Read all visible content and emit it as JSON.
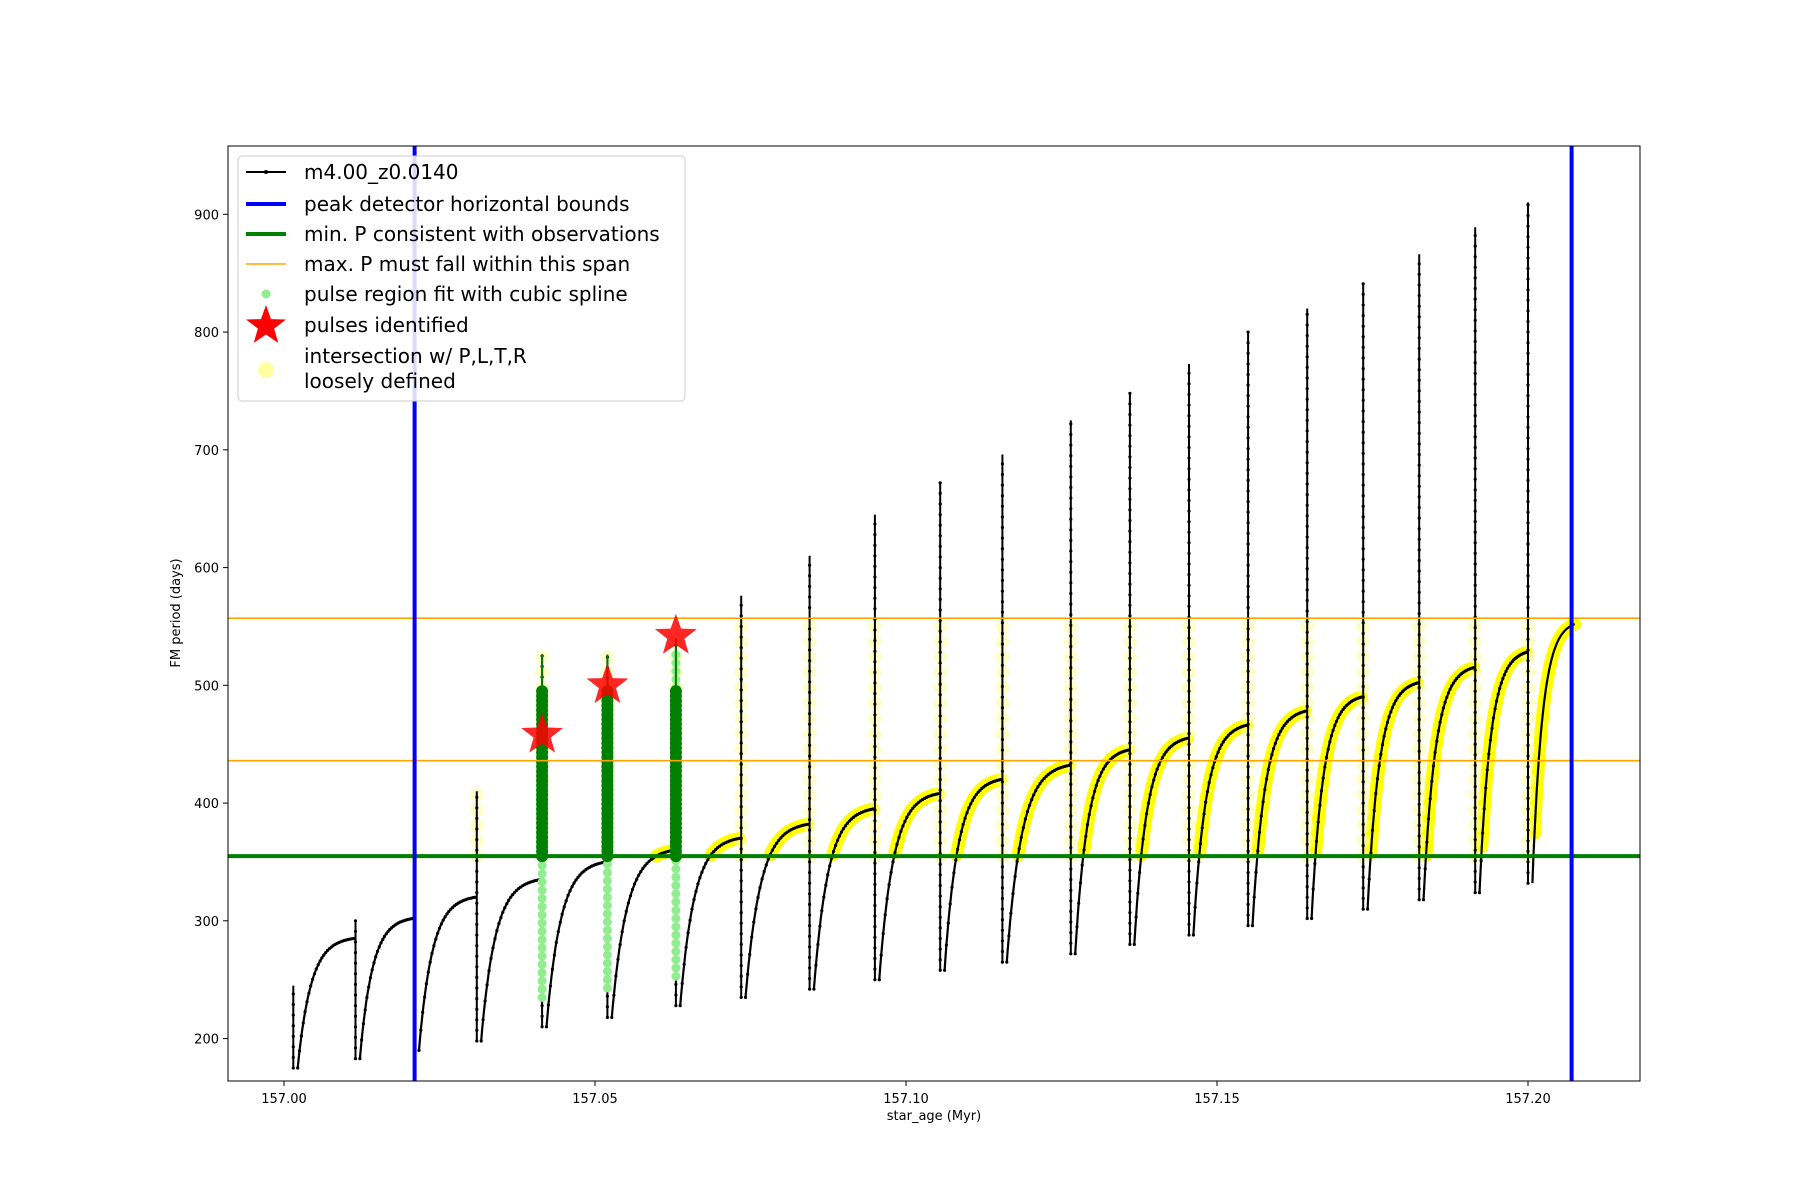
{
  "chart_data": {
    "type": "scatter",
    "title": "",
    "xlabel": "star_age (Myr)",
    "ylabel": "FM period (days)",
    "xlim": [
      156.991,
      157.218
    ],
    "ylim": [
      164,
      958
    ],
    "x_ticks": [
      157.0,
      157.05,
      157.1,
      157.15,
      157.2
    ],
    "x_tick_labels": [
      "157.00",
      "157.05",
      "157.10",
      "157.15",
      "157.20"
    ],
    "y_ticks": [
      200,
      300,
      400,
      500,
      600,
      700,
      800,
      900
    ],
    "y_tick_labels": [
      "200",
      "300",
      "400",
      "500",
      "600",
      "700",
      "800",
      "900"
    ],
    "grid": false,
    "legend_position": "upper-left",
    "legend": [
      {
        "label": "m4.00_z0.0140",
        "style": "line-marker",
        "color": "#000000"
      },
      {
        "label": "peak detector horizontal bounds",
        "style": "thick-line",
        "color": "#0000ff"
      },
      {
        "label": "min. P consistent with observations",
        "style": "thick-line",
        "color": "#008000"
      },
      {
        "label": "max. P must fall within this span",
        "style": "thin-line",
        "color": "#ffa500"
      },
      {
        "label": "pulse region fit with cubic spline",
        "style": "dot",
        "color": "#90ee90"
      },
      {
        "label": "pulses identified",
        "style": "star",
        "color": "#ff0000"
      },
      {
        "label": "intersection w/ P,L,T,R",
        "label2": "loosely defined",
        "style": "big-dot",
        "color": "#ffffa0"
      }
    ],
    "vertical_bounds": [
      157.021,
      157.207
    ],
    "min_period": 355,
    "max_period_span": [
      436,
      557
    ],
    "pulses": [
      {
        "x": 157.0015,
        "min": 175,
        "max": 242,
        "rise_from": 175,
        "rise_to": 285,
        "spike": 245
      },
      {
        "x": 157.0115,
        "min": 183,
        "max": 302,
        "rise_from": 183,
        "rise_to": 302,
        "spike": 300
      },
      {
        "x": 157.021,
        "min": 190,
        "max": 320,
        "rise_from": 190,
        "rise_to": 320,
        "spike": 360
      },
      {
        "x": 157.031,
        "min": 198,
        "max": 335,
        "rise_from": 198,
        "rise_to": 335,
        "spike": 410
      },
      {
        "x": 157.0415,
        "min": 210,
        "max": 350,
        "rise_from": 210,
        "rise_to": 350,
        "spike": 526
      },
      {
        "x": 157.052,
        "min": 218,
        "max": 360,
        "rise_from": 218,
        "rise_to": 360,
        "spike": 526
      },
      {
        "x": 157.063,
        "min": 228,
        "max": 370,
        "rise_from": 228,
        "rise_to": 370,
        "spike": 540
      },
      {
        "x": 157.0735,
        "min": 235,
        "max": 382,
        "rise_from": 235,
        "rise_to": 382,
        "spike": 576
      },
      {
        "x": 157.0845,
        "min": 242,
        "max": 395,
        "rise_from": 242,
        "rise_to": 395,
        "spike": 610
      },
      {
        "x": 157.095,
        "min": 250,
        "max": 408,
        "rise_from": 250,
        "rise_to": 408,
        "spike": 645
      },
      {
        "x": 157.1055,
        "min": 258,
        "max": 420,
        "rise_from": 258,
        "rise_to": 420,
        "spike": 673
      },
      {
        "x": 157.1155,
        "min": 265,
        "max": 432,
        "rise_from": 265,
        "rise_to": 432,
        "spike": 696
      },
      {
        "x": 157.1265,
        "min": 272,
        "max": 445,
        "rise_from": 272,
        "rise_to": 445,
        "spike": 725
      },
      {
        "x": 157.136,
        "min": 280,
        "max": 455,
        "rise_from": 280,
        "rise_to": 455,
        "spike": 748
      },
      {
        "x": 157.1455,
        "min": 288,
        "max": 466,
        "rise_from": 288,
        "rise_to": 466,
        "spike": 773
      },
      {
        "x": 157.155,
        "min": 296,
        "max": 478,
        "rise_from": 296,
        "rise_to": 478,
        "spike": 800
      },
      {
        "x": 157.1645,
        "min": 302,
        "max": 490,
        "rise_from": 302,
        "rise_to": 490,
        "spike": 820
      },
      {
        "x": 157.1735,
        "min": 310,
        "max": 502,
        "rise_from": 310,
        "rise_to": 502,
        "spike": 842
      },
      {
        "x": 157.1825,
        "min": 318,
        "max": 515,
        "rise_from": 318,
        "rise_to": 515,
        "spike": 866
      },
      {
        "x": 157.1915,
        "min": 324,
        "max": 528,
        "rise_from": 324,
        "rise_to": 528,
        "spike": 889
      },
      {
        "x": 157.2,
        "min": 332,
        "max": 540,
        "rise_from": 332,
        "rise_to": 540,
        "spike": 910
      }
    ],
    "final_rise": {
      "x_from": 157.2,
      "x_to": 157.2075,
      "from": 332,
      "to": 552
    },
    "pulses_identified": [
      {
        "x": 157.0415,
        "y": 458
      },
      {
        "x": 157.052,
        "y": 500
      },
      {
        "x": 157.063,
        "y": 542
      }
    ],
    "colors": {
      "model": "#000000",
      "bounds": "#0000ff",
      "min_p": "#008000",
      "max_p": "#ffa500",
      "spline": "#90ee90",
      "spline_fit": "#008000",
      "stars": "#ff0000",
      "intersection": "#ffff00",
      "intersection_soft": "#ffffa0"
    }
  }
}
